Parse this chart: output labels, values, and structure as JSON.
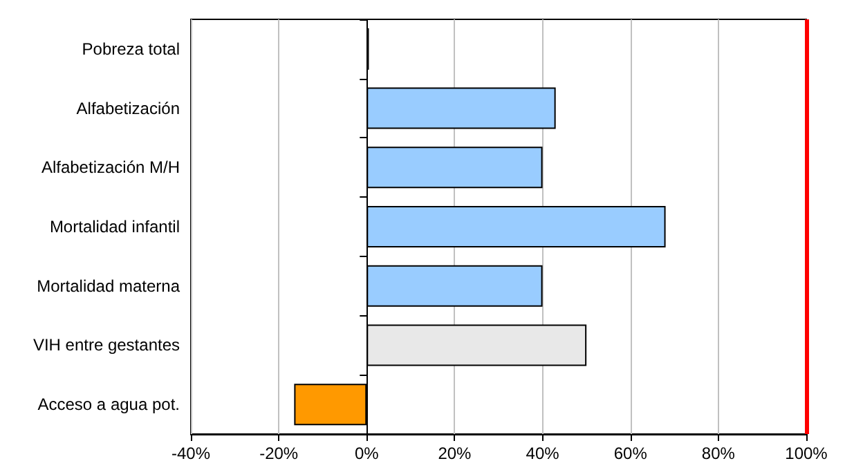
{
  "chart_data": {
    "type": "bar",
    "orientation": "horizontal",
    "categories": [
      "Pobreza total",
      "Alfabetización",
      "Alfabetización M/H",
      "Mortalidad infantil",
      "Mortalidad materna",
      "VIH entre gestantes",
      "Acceso a agua pot."
    ],
    "values": [
      0.5,
      43,
      40,
      68,
      40,
      50,
      -16.5
    ],
    "colors": [
      "#000000",
      "#99ccff",
      "#99ccff",
      "#99ccff",
      "#99ccff",
      "#e8e8e8",
      "#ff9900"
    ],
    "xlim": [
      -40,
      100
    ],
    "xticks": [
      {
        "value": -40,
        "label": "-40%"
      },
      {
        "value": -20,
        "label": "-20%"
      },
      {
        "value": 0,
        "label": "0%"
      },
      {
        "value": 20,
        "label": "20%"
      },
      {
        "value": 40,
        "label": "40%"
      },
      {
        "value": 60,
        "label": "60%"
      },
      {
        "value": 80,
        "label": "80%"
      },
      {
        "value": 100,
        "label": "100%"
      }
    ],
    "grid": "x",
    "ref_lines": [
      {
        "axis": "x",
        "value": 100,
        "color": "#ff0000",
        "line_style": "solid"
      }
    ]
  }
}
